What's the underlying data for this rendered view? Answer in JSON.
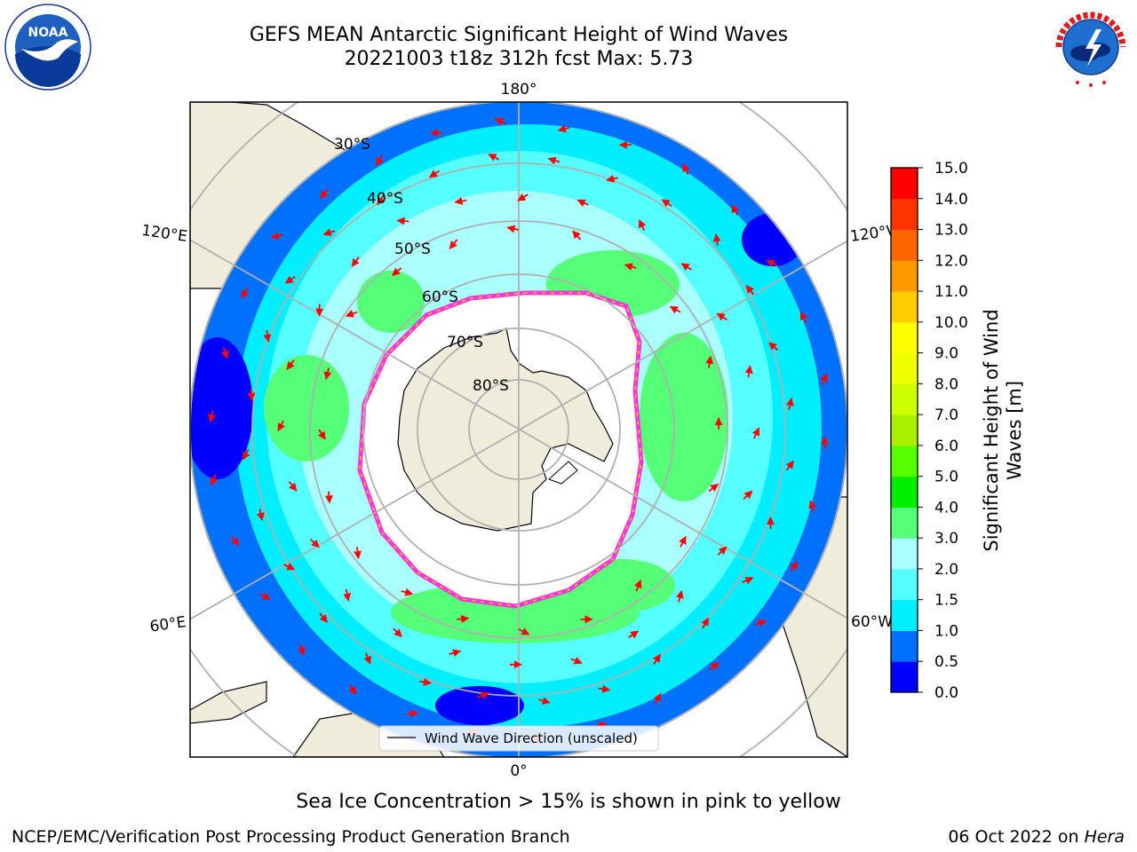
{
  "title": {
    "line1": "GEFS MEAN Antarctic Significant Height of Wind Waves",
    "line2": "20221003 t18z 312h fcst   Max: 5.73"
  },
  "map": {
    "projection": "south-polar-stereographic",
    "lon_labels": [
      "180°",
      "120°E",
      "120°W",
      "60°E",
      "60°W",
      "0°"
    ],
    "lat_labels": [
      "30°S",
      "40°S",
      "50°S",
      "60°S",
      "70°S",
      "80°S"
    ],
    "legend_label": "Wind Wave Direction (unscaled)",
    "colors": {
      "land": "#efecdc",
      "ice_edge": "#ff33dd",
      "arrow": "#ff0000",
      "grid": "#b0b0b0"
    }
  },
  "colorbar": {
    "label": "Significant Height of Wind Waves [m]",
    "label_line1": "Significant Height of Wind",
    "label_line2": "Waves [m]",
    "ticks": [
      "0.0",
      "0.5",
      "1.0",
      "1.5",
      "2.0",
      "3.0",
      "4.0",
      "5.0",
      "6.0",
      "7.0",
      "8.0",
      "9.0",
      "10.0",
      "11.0",
      "12.0",
      "13.0",
      "14.0",
      "15.0"
    ],
    "colors": [
      "#0000ff",
      "#0070ff",
      "#00eeff",
      "#55ffff",
      "#aaffff",
      "#55ff77",
      "#00ee00",
      "#55ff00",
      "#aaee00",
      "#ccff00",
      "#eeff00",
      "#ffff00",
      "#ffcc00",
      "#ff9900",
      "#ff6600",
      "#ff3300",
      "#ff0000"
    ]
  },
  "logos": {
    "left": "NOAA",
    "right": "NATIONAL WEATHER SERVICE"
  },
  "footer": {
    "note": "Sea Ice Concentration > 15% is shown in pink to yellow",
    "credit": "NCEP/EMC/Verification Post Processing Product Generation Branch",
    "date": "06 Oct 2022 on",
    "host": "Hera"
  }
}
